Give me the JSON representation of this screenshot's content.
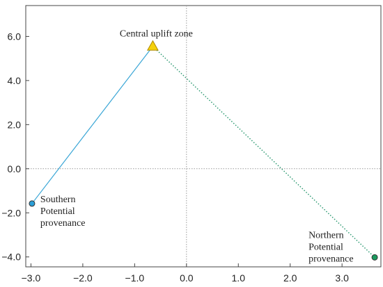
{
  "chart_data": {
    "type": "scatter",
    "title": "",
    "xlabel": "",
    "ylabel": "",
    "xlim": [
      -3.1,
      3.75
    ],
    "ylim": [
      -4.45,
      7.4
    ],
    "grid": false,
    "zero_lines": true,
    "x_ticks": [
      -3.0,
      -2.0,
      -1.0,
      0.0,
      1.0,
      2.0,
      3.0
    ],
    "x_tick_labels": [
      "−3.0",
      "−2.0",
      "−1.0",
      "0.0",
      "1.0",
      "2.0",
      "3.0"
    ],
    "y_ticks": [
      6.0,
      4.0,
      2.0,
      0.0,
      -2.0,
      -4.0
    ],
    "y_tick_labels": [
      "6.0",
      "4.0",
      "2.0",
      "0.0",
      "−2.0",
      "−4.0"
    ],
    "points": [
      {
        "id": "central",
        "x": -0.65,
        "y": 5.55,
        "marker": "triangle",
        "color": "#f5d10c",
        "label": [
          "Central uplift zone"
        ]
      },
      {
        "id": "southern",
        "x": -2.98,
        "y": -1.58,
        "marker": "circle",
        "color": "#2a9fd8",
        "label": [
          "Southern",
          "Potential",
          "provenance"
        ]
      },
      {
        "id": "northern",
        "x": 3.63,
        "y": -4.02,
        "marker": "circle",
        "color": "#1b9a5e",
        "label": [
          "Northern",
          "Potential",
          "provenance"
        ]
      }
    ],
    "links": [
      {
        "from": "central",
        "to": "southern",
        "style": "solid",
        "color": "#3aa6d6"
      },
      {
        "from": "central",
        "to": "northern",
        "style": "dotted",
        "color": "#2e9a72"
      }
    ]
  }
}
